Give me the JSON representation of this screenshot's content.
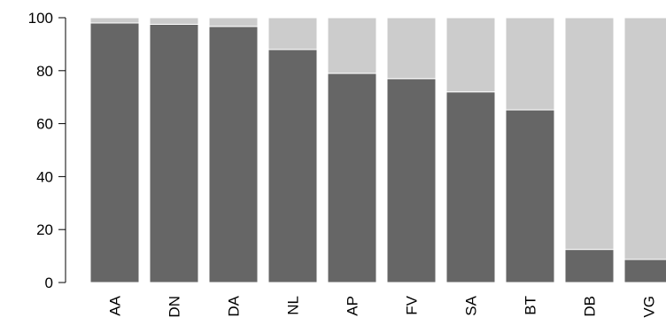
{
  "chart_data": {
    "type": "bar",
    "stacked": true,
    "categories": [
      "AA",
      "DN",
      "DA",
      "NL",
      "AP",
      "FV",
      "SA",
      "BT",
      "DB",
      "VG"
    ],
    "series": [
      {
        "values": [
          98,
          97.5,
          96.7,
          88,
          79,
          77,
          72,
          65.2,
          12.5,
          8.7
        ],
        "color": "#666666"
      },
      {
        "values": [
          2,
          2.5,
          3.3,
          12,
          21,
          23,
          28,
          34.8,
          87.5,
          91.3
        ],
        "color": "#cccccc"
      }
    ],
    "title": "",
    "xlabel": "",
    "ylabel": "",
    "ylim": [
      0,
      100
    ],
    "yticks": [
      0,
      20,
      40,
      60,
      80,
      100
    ],
    "grid": false,
    "legend": "none"
  }
}
